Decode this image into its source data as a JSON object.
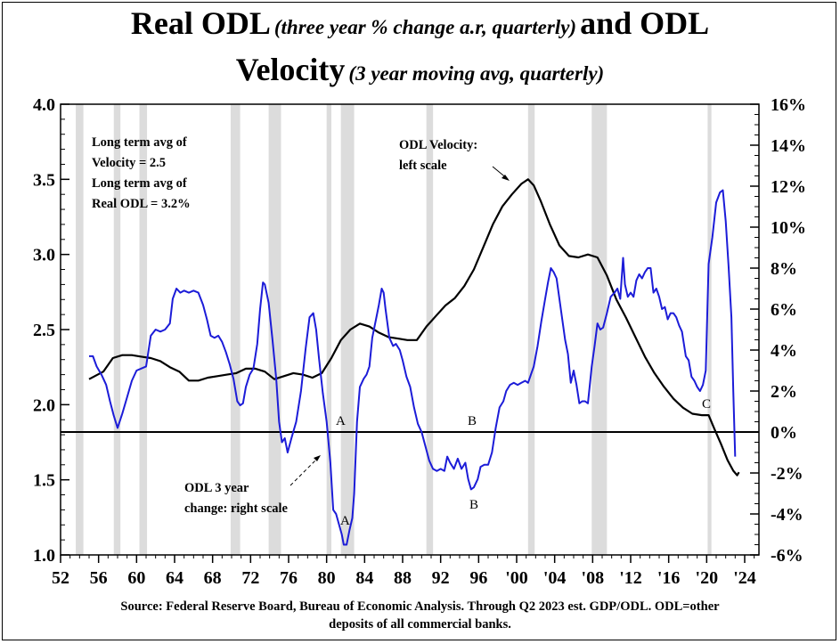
{
  "title": {
    "line1_main": "Real ODL",
    "line1_paren": "(three year % change a.r, quarterly)",
    "line1_end": "and ODL",
    "line2_main": "Velocity",
    "line2_paren": "(3 year moving avg, quarterly)"
  },
  "source": {
    "line1": "Source:  Federal Reserve Board, Bureau of Economic Analysis.  Through Q2 2023 est.  GDP/ODL. ODL=other",
    "line2": "deposits of all commercial banks."
  },
  "chart_data": {
    "type": "line",
    "x_ticks": [
      "52",
      "56",
      "60",
      "64",
      "68",
      "72",
      "76",
      "80",
      "84",
      "88",
      "92",
      "96",
      "'00",
      "'04",
      "'08",
      "'12",
      "'16",
      "'20",
      "'24"
    ],
    "x_tick_years": [
      1952,
      1956,
      1960,
      1964,
      1968,
      1972,
      1976,
      1980,
      1984,
      1988,
      1992,
      1996,
      2000,
      2004,
      2008,
      2012,
      2016,
      2020,
      2024
    ],
    "xlim": [
      1952,
      2025.5
    ],
    "left_axis": {
      "ticks": [
        "1.0",
        "1.5",
        "2.0",
        "2.5",
        "3.0",
        "3.5",
        "4.0"
      ],
      "ylim": [
        1.0,
        4.0
      ]
    },
    "right_axis": {
      "ticks": [
        "-6%",
        "-4%",
        "-2%",
        "0%",
        "2%",
        "4%",
        "6%",
        "8%",
        "10%",
        "12%",
        "14%",
        "16%"
      ],
      "ylim": [
        -6,
        16
      ]
    },
    "recessions": [
      [
        1953.6,
        1954.4
      ],
      [
        1957.6,
        1958.3
      ],
      [
        1960.3,
        1961.1
      ],
      [
        1969.9,
        1970.9
      ],
      [
        1973.9,
        1975.2
      ],
      [
        1980.0,
        1980.5
      ],
      [
        1981.5,
        1982.9
      ],
      [
        1990.5,
        1991.2
      ],
      [
        2001.2,
        2001.9
      ],
      [
        2007.9,
        2009.5
      ],
      [
        2020.1,
        2020.5
      ]
    ],
    "series": [
      {
        "name": "ODL Velocity",
        "axis": "left",
        "color": "#000000",
        "points": [
          [
            1955.0,
            2.17
          ],
          [
            1956.5,
            2.22
          ],
          [
            1957.5,
            2.31
          ],
          [
            1958.5,
            2.33
          ],
          [
            1959.5,
            2.33
          ],
          [
            1960.5,
            2.32
          ],
          [
            1961.5,
            2.31
          ],
          [
            1962.5,
            2.29
          ],
          [
            1963.5,
            2.25
          ],
          [
            1964.5,
            2.22
          ],
          [
            1965.5,
            2.16
          ],
          [
            1966.5,
            2.16
          ],
          [
            1967.5,
            2.18
          ],
          [
            1968.5,
            2.19
          ],
          [
            1969.5,
            2.2
          ],
          [
            1970.5,
            2.21
          ],
          [
            1971.5,
            2.24
          ],
          [
            1972.5,
            2.24
          ],
          [
            1973.5,
            2.22
          ],
          [
            1974.5,
            2.17
          ],
          [
            1975.5,
            2.19
          ],
          [
            1976.5,
            2.21
          ],
          [
            1977.5,
            2.2
          ],
          [
            1978.5,
            2.18
          ],
          [
            1979.5,
            2.21
          ],
          [
            1980.5,
            2.31
          ],
          [
            1981.5,
            2.43
          ],
          [
            1982.5,
            2.5
          ],
          [
            1983.5,
            2.54
          ],
          [
            1984.5,
            2.52
          ],
          [
            1985.5,
            2.48
          ],
          [
            1986.5,
            2.45
          ],
          [
            1987.5,
            2.44
          ],
          [
            1988.5,
            2.43
          ],
          [
            1989.5,
            2.43
          ],
          [
            1990.5,
            2.52
          ],
          [
            1991.5,
            2.59
          ],
          [
            1992.5,
            2.66
          ],
          [
            1993.5,
            2.71
          ],
          [
            1994.5,
            2.79
          ],
          [
            1995.5,
            2.9
          ],
          [
            1996.5,
            3.05
          ],
          [
            1997.5,
            3.2
          ],
          [
            1998.5,
            3.32
          ],
          [
            1999.5,
            3.4
          ],
          [
            2000.5,
            3.47
          ],
          [
            2001.2,
            3.5
          ],
          [
            2001.8,
            3.46
          ],
          [
            2002.5,
            3.36
          ],
          [
            2003.5,
            3.2
          ],
          [
            2004.5,
            3.06
          ],
          [
            2005.5,
            2.99
          ],
          [
            2006.5,
            2.98
          ],
          [
            2007.5,
            3.0
          ],
          [
            2008.5,
            2.98
          ],
          [
            2009.5,
            2.86
          ],
          [
            2010.5,
            2.7
          ],
          [
            2011.5,
            2.58
          ],
          [
            2012.5,
            2.45
          ],
          [
            2013.5,
            2.32
          ],
          [
            2014.5,
            2.21
          ],
          [
            2015.5,
            2.12
          ],
          [
            2016.5,
            2.04
          ],
          [
            2017.5,
            1.98
          ],
          [
            2018.5,
            1.94
          ],
          [
            2019.5,
            1.93
          ],
          [
            2020.2,
            1.93
          ],
          [
            2020.8,
            1.84
          ],
          [
            2021.5,
            1.74
          ],
          [
            2022.2,
            1.63
          ],
          [
            2022.8,
            1.56
          ],
          [
            2023.2,
            1.53
          ],
          [
            2023.4,
            1.55
          ]
        ]
      },
      {
        "name": "Real ODL",
        "axis": "right",
        "color": "#1c1cd8",
        "points": [
          [
            1955.0,
            3.7
          ],
          [
            1955.4,
            3.7
          ],
          [
            1955.8,
            3.2
          ],
          [
            1956.3,
            2.8
          ],
          [
            1956.8,
            2.3
          ],
          [
            1957.2,
            1.5
          ],
          [
            1957.6,
            0.8
          ],
          [
            1958.0,
            0.2
          ],
          [
            1958.5,
            0.9
          ],
          [
            1959.0,
            1.7
          ],
          [
            1959.5,
            2.5
          ],
          [
            1960.0,
            3.0
          ],
          [
            1960.5,
            3.1
          ],
          [
            1961.0,
            3.2
          ],
          [
            1961.5,
            4.7
          ],
          [
            1962.0,
            5.0
          ],
          [
            1962.5,
            4.9
          ],
          [
            1963.0,
            5.0
          ],
          [
            1963.5,
            5.3
          ],
          [
            1963.8,
            6.5
          ],
          [
            1964.2,
            7.0
          ],
          [
            1964.6,
            6.8
          ],
          [
            1965.0,
            6.9
          ],
          [
            1965.5,
            6.8
          ],
          [
            1966.0,
            6.9
          ],
          [
            1966.5,
            6.8
          ],
          [
            1967.0,
            6.2
          ],
          [
            1967.4,
            5.5
          ],
          [
            1967.8,
            4.7
          ],
          [
            1968.2,
            4.6
          ],
          [
            1968.6,
            4.7
          ],
          [
            1969.0,
            4.4
          ],
          [
            1969.4,
            3.9
          ],
          [
            1969.8,
            3.3
          ],
          [
            1970.2,
            2.6
          ],
          [
            1970.6,
            1.5
          ],
          [
            1970.9,
            1.3
          ],
          [
            1971.2,
            1.4
          ],
          [
            1971.5,
            2.2
          ],
          [
            1971.9,
            2.8
          ],
          [
            1972.3,
            3.1
          ],
          [
            1972.7,
            4.3
          ],
          [
            1973.0,
            6.0
          ],
          [
            1973.3,
            7.3
          ],
          [
            1973.5,
            7.2
          ],
          [
            1973.9,
            6.3
          ],
          [
            1974.3,
            4.5
          ],
          [
            1974.7,
            2.6
          ],
          [
            1975.0,
            0.5
          ],
          [
            1975.3,
            -0.5
          ],
          [
            1975.6,
            -0.3
          ],
          [
            1975.9,
            -1.0
          ],
          [
            1976.3,
            -0.3
          ],
          [
            1976.8,
            0.5
          ],
          [
            1977.3,
            2.0
          ],
          [
            1977.8,
            4.1
          ],
          [
            1978.2,
            5.6
          ],
          [
            1978.6,
            5.8
          ],
          [
            1978.9,
            5.0
          ],
          [
            1979.2,
            3.6
          ],
          [
            1979.6,
            1.9
          ],
          [
            1980.0,
            0.5
          ],
          [
            1980.4,
            -1.5
          ],
          [
            1980.7,
            -3.8
          ],
          [
            1981.0,
            -4.0
          ],
          [
            1981.3,
            -4.5
          ],
          [
            1981.6,
            -5.0
          ],
          [
            1981.8,
            -5.5
          ],
          [
            1982.1,
            -5.5
          ],
          [
            1982.4,
            -4.8
          ],
          [
            1982.7,
            -4.2
          ],
          [
            1982.9,
            -3.0
          ],
          [
            1983.2,
            0.5
          ],
          [
            1983.5,
            2.2
          ],
          [
            1983.9,
            2.6
          ],
          [
            1984.2,
            2.8
          ],
          [
            1984.5,
            3.2
          ],
          [
            1984.8,
            4.6
          ],
          [
            1985.2,
            5.5
          ],
          [
            1985.5,
            6.2
          ],
          [
            1985.8,
            7.0
          ],
          [
            1986.0,
            6.8
          ],
          [
            1986.2,
            6.0
          ],
          [
            1986.6,
            4.6
          ],
          [
            1987.0,
            4.2
          ],
          [
            1987.3,
            4.3
          ],
          [
            1987.7,
            4.0
          ],
          [
            1988.0,
            3.5
          ],
          [
            1988.4,
            2.7
          ],
          [
            1988.8,
            2.2
          ],
          [
            1989.2,
            1.2
          ],
          [
            1989.6,
            0.4
          ],
          [
            1990.0,
            0.0
          ],
          [
            1990.4,
            -0.7
          ],
          [
            1990.8,
            -1.4
          ],
          [
            1991.2,
            -1.8
          ],
          [
            1991.6,
            -1.9
          ],
          [
            1992.0,
            -1.8
          ],
          [
            1992.4,
            -1.9
          ],
          [
            1992.7,
            -1.2
          ],
          [
            1993.0,
            -1.5
          ],
          [
            1993.4,
            -1.8
          ],
          [
            1993.8,
            -1.3
          ],
          [
            1994.2,
            -1.8
          ],
          [
            1994.6,
            -1.5
          ],
          [
            1994.9,
            -2.3
          ],
          [
            1995.2,
            -2.8
          ],
          [
            1995.5,
            -2.7
          ],
          [
            1995.9,
            -2.3
          ],
          [
            1996.2,
            -1.7
          ],
          [
            1996.6,
            -1.6
          ],
          [
            1997.0,
            -1.6
          ],
          [
            1997.4,
            -1.0
          ],
          [
            1997.8,
            0.2
          ],
          [
            1998.2,
            1.2
          ],
          [
            1998.6,
            1.5
          ],
          [
            1998.9,
            2.0
          ],
          [
            1999.3,
            2.3
          ],
          [
            1999.7,
            2.4
          ],
          [
            2000.1,
            2.3
          ],
          [
            2000.5,
            2.4
          ],
          [
            2000.9,
            2.5
          ],
          [
            2001.2,
            2.4
          ],
          [
            2001.5,
            2.8
          ],
          [
            2001.8,
            3.2
          ],
          [
            2002.2,
            4.2
          ],
          [
            2002.6,
            5.4
          ],
          [
            2003.0,
            6.5
          ],
          [
            2003.3,
            7.3
          ],
          [
            2003.6,
            8.0
          ],
          [
            2003.9,
            7.8
          ],
          [
            2004.2,
            7.5
          ],
          [
            2004.5,
            6.5
          ],
          [
            2004.8,
            5.5
          ],
          [
            2005.1,
            4.5
          ],
          [
            2005.4,
            3.8
          ],
          [
            2005.7,
            2.4
          ],
          [
            2006.0,
            3.0
          ],
          [
            2006.3,
            2.3
          ],
          [
            2006.6,
            1.4
          ],
          [
            2006.9,
            1.5
          ],
          [
            2007.2,
            1.5
          ],
          [
            2007.5,
            1.4
          ],
          [
            2007.9,
            3.2
          ],
          [
            2008.2,
            4.2
          ],
          [
            2008.5,
            5.3
          ],
          [
            2008.8,
            5.0
          ],
          [
            2009.1,
            5.1
          ],
          [
            2009.5,
            5.8
          ],
          [
            2009.9,
            6.6
          ],
          [
            2010.3,
            6.8
          ],
          [
            2010.6,
            7.0
          ],
          [
            2010.9,
            6.5
          ],
          [
            2011.2,
            8.5
          ],
          [
            2011.4,
            7.2
          ],
          [
            2011.7,
            6.6
          ],
          [
            2012.0,
            6.8
          ],
          [
            2012.3,
            6.6
          ],
          [
            2012.6,
            7.4
          ],
          [
            2012.9,
            7.7
          ],
          [
            2013.2,
            7.5
          ],
          [
            2013.5,
            7.8
          ],
          [
            2013.8,
            8.0
          ],
          [
            2014.1,
            8.0
          ],
          [
            2014.4,
            6.8
          ],
          [
            2014.7,
            7.0
          ],
          [
            2015.0,
            6.6
          ],
          [
            2015.3,
            6.0
          ],
          [
            2015.6,
            6.1
          ],
          [
            2015.9,
            5.5
          ],
          [
            2016.2,
            5.8
          ],
          [
            2016.5,
            5.8
          ],
          [
            2016.8,
            5.6
          ],
          [
            2017.1,
            5.2
          ],
          [
            2017.4,
            4.9
          ],
          [
            2017.8,
            3.7
          ],
          [
            2018.1,
            3.5
          ],
          [
            2018.4,
            2.7
          ],
          [
            2018.7,
            2.5
          ],
          [
            2019.0,
            2.2
          ],
          [
            2019.3,
            2.0
          ],
          [
            2019.6,
            2.3
          ],
          [
            2019.9,
            3.0
          ],
          [
            2020.2,
            8.2
          ],
          [
            2020.6,
            9.5
          ],
          [
            2021.0,
            11.2
          ],
          [
            2021.4,
            11.7
          ],
          [
            2021.7,
            11.8
          ],
          [
            2022.0,
            10.3
          ],
          [
            2022.3,
            8.1
          ],
          [
            2022.6,
            5.6
          ],
          [
            2022.8,
            2.0
          ],
          [
            2023.0,
            -1.2
          ]
        ]
      }
    ],
    "reference_line": {
      "axis": "right",
      "value": 0
    },
    "annotations": {
      "avg_velocity_1": "Long term avg of",
      "avg_velocity_2": "Velocity = 2.5",
      "avg_odl_1": "Long term avg of",
      "avg_odl_2": "Real ODL = 3.2%",
      "velocity_label_1": "ODL Velocity:",
      "velocity_label_2": "left scale",
      "odl_label_1": "ODL 3 year",
      "odl_label_2": "change: right scale",
      "marker_a_top": "A",
      "marker_a_bottom": "A",
      "marker_b_top": "B",
      "marker_b_bottom": "B",
      "marker_c": "C"
    }
  }
}
